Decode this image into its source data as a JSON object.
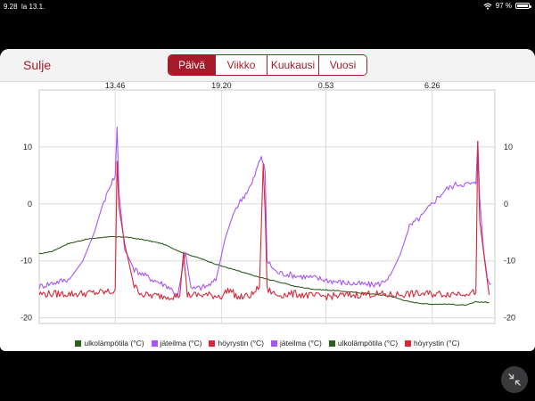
{
  "status_bar": {
    "time": "9.28",
    "date": "la 13.1.",
    "battery": "97 %",
    "battery_level": 0.97
  },
  "header": {
    "close_label": "Sulje",
    "tabs": [
      {
        "label": "Päivä",
        "active": true
      },
      {
        "label": "Viikko",
        "active": false
      },
      {
        "label": "Kuukausi",
        "active": false
      },
      {
        "label": "Vuosi",
        "active": false
      }
    ]
  },
  "colors": {
    "accent": "#a61b29",
    "purple": "#a855f7",
    "red": "#d6283a",
    "green": "#2e5e1e"
  },
  "icons": {
    "wifi": "wifi-icon",
    "battery": "battery-icon",
    "shrink": "shrink-arrows-icon"
  },
  "chart_data": {
    "type": "line",
    "x_unit": "hours",
    "x_ticks": [
      {
        "label": "13.46",
        "x": 4.0
      },
      {
        "label": "19.20",
        "x": 9.6
      },
      {
        "label": "0.53",
        "x": 15.1
      },
      {
        "label": "6.26",
        "x": 20.7
      }
    ],
    "xlim": [
      0,
      24
    ],
    "y_ticks": [
      10,
      0,
      -10,
      -20
    ],
    "ylim": [
      -21,
      20
    ],
    "grid": true,
    "legend_position": "bottom",
    "series": [
      {
        "name": "ulkolämpötila (°C)",
        "color": "#2e5e1e",
        "points": [
          [
            0,
            -8.8
          ],
          [
            0.7,
            -8.3
          ],
          [
            1.5,
            -7.0
          ],
          [
            2.5,
            -6.2
          ],
          [
            3.5,
            -5.8
          ],
          [
            4.5,
            -5.8
          ],
          [
            5.5,
            -6.3
          ],
          [
            6.5,
            -7.0
          ],
          [
            7.5,
            -8.5
          ],
          [
            8.5,
            -9.6
          ],
          [
            9.5,
            -10.8
          ],
          [
            10.5,
            -11.8
          ],
          [
            11.5,
            -12.8
          ],
          [
            12.5,
            -13.6
          ],
          [
            13.5,
            -14.5
          ],
          [
            14.5,
            -15.0
          ],
          [
            15.5,
            -15.2
          ],
          [
            16.5,
            -15.5
          ],
          [
            17.5,
            -15.8
          ],
          [
            18.5,
            -16.2
          ],
          [
            19.5,
            -17.2
          ],
          [
            20.5,
            -17.6
          ],
          [
            21.5,
            -17.6
          ],
          [
            22.5,
            -17.8
          ],
          [
            23.0,
            -17.2
          ],
          [
            23.7,
            -17.3
          ]
        ]
      },
      {
        "name": "jäteilma (°C)",
        "color": "#a855f7",
        "points": [
          [
            0,
            -14.5
          ],
          [
            0.8,
            -13.8
          ],
          [
            1.6,
            -13.2
          ],
          [
            2.3,
            -10.0
          ],
          [
            2.9,
            -5.0
          ],
          [
            3.4,
            0.5
          ],
          [
            3.8,
            3.5
          ],
          [
            4.0,
            4.8
          ],
          [
            4.1,
            13.5
          ],
          [
            4.2,
            2.0
          ],
          [
            4.5,
            -8.0
          ],
          [
            5.0,
            -11.5
          ],
          [
            5.8,
            -13.0
          ],
          [
            6.8,
            -14.5
          ],
          [
            7.3,
            -16.0
          ],
          [
            7.7,
            -8.5
          ],
          [
            8.0,
            -15.0
          ],
          [
            8.8,
            -14.5
          ],
          [
            9.3,
            -13.5
          ],
          [
            9.8,
            -6.0
          ],
          [
            10.3,
            -1.0
          ],
          [
            10.8,
            1.5
          ],
          [
            11.2,
            3.5
          ],
          [
            11.5,
            6.5
          ],
          [
            11.7,
            8.5
          ],
          [
            11.9,
            5.5
          ],
          [
            12.0,
            -10.0
          ],
          [
            12.5,
            -12.0
          ],
          [
            13.5,
            -12.6
          ],
          [
            14.5,
            -13.0
          ],
          [
            15.5,
            -13.6
          ],
          [
            16.5,
            -14.0
          ],
          [
            17.5,
            -14.2
          ],
          [
            18.0,
            -14.0
          ],
          [
            18.5,
            -12.5
          ],
          [
            19.0,
            -9.0
          ],
          [
            19.5,
            -4.0
          ],
          [
            20.2,
            -2.0
          ],
          [
            20.8,
            0.5
          ],
          [
            21.4,
            2.5
          ],
          [
            22.0,
            3.5
          ],
          [
            22.5,
            3.5
          ],
          [
            23.0,
            3.5
          ],
          [
            23.1,
            11.0
          ],
          [
            23.2,
            1.0
          ],
          [
            23.4,
            -8.0
          ],
          [
            23.6,
            -13.0
          ],
          [
            23.8,
            -14.0
          ]
        ]
      },
      {
        "name": "höyrystin (°C)",
        "color": "#d6283a",
        "points": [
          [
            0,
            -15.8
          ],
          [
            1.0,
            -15.8
          ],
          [
            2.0,
            -15.8
          ],
          [
            3.0,
            -15.6
          ],
          [
            3.9,
            -15.4
          ],
          [
            4.0,
            -15.0
          ],
          [
            4.1,
            7.5
          ],
          [
            4.2,
            -0.5
          ],
          [
            4.5,
            -7.0
          ],
          [
            5.0,
            -14.5
          ],
          [
            5.5,
            -16.0
          ],
          [
            6.5,
            -16.2
          ],
          [
            7.4,
            -16.2
          ],
          [
            7.6,
            -8.5
          ],
          [
            7.8,
            -16.0
          ],
          [
            8.8,
            -16.0
          ],
          [
            9.6,
            -16.2
          ],
          [
            10.0,
            -15.0
          ],
          [
            10.5,
            -16.5
          ],
          [
            11.2,
            -16.0
          ],
          [
            11.6,
            -14.5
          ],
          [
            11.8,
            7.0
          ],
          [
            11.9,
            -1.5
          ],
          [
            12.0,
            -15.0
          ],
          [
            12.5,
            -16.0
          ],
          [
            13.5,
            -15.8
          ],
          [
            14.5,
            -16.2
          ],
          [
            15.5,
            -16.2
          ],
          [
            16.5,
            -16.0
          ],
          [
            17.5,
            -15.8
          ],
          [
            18.5,
            -16.0
          ],
          [
            19.5,
            -15.8
          ],
          [
            20.5,
            -15.8
          ],
          [
            21.5,
            -15.8
          ],
          [
            22.5,
            -15.6
          ],
          [
            23.0,
            -15.6
          ],
          [
            23.1,
            11.0
          ],
          [
            23.2,
            -3.0
          ],
          [
            23.5,
            -11.0
          ],
          [
            23.7,
            -16.0
          ]
        ]
      }
    ],
    "legend": [
      {
        "label": "ulkolämpötila (°C)",
        "color": "#2e5e1e"
      },
      {
        "label": "jäteilma (°C)",
        "color": "#a855f7"
      },
      {
        "label": "höyrystin (°C)",
        "color": "#d6283a"
      },
      {
        "label": "jäteilma (°C)",
        "color": "#a855f7"
      },
      {
        "label": "ulkolämpötila (°C)",
        "color": "#2e5e1e"
      },
      {
        "label": "höyrystin (°C)",
        "color": "#d6283a"
      }
    ]
  }
}
